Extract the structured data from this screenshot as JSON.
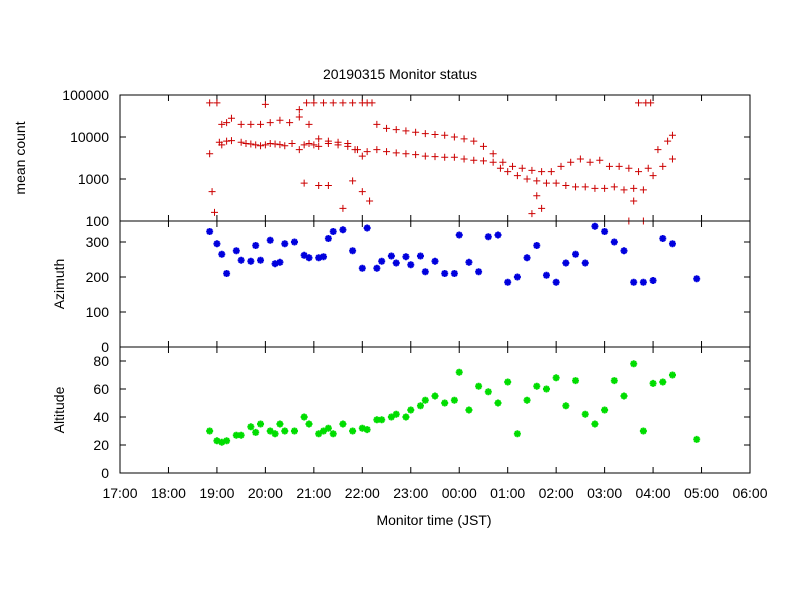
{
  "chart_data": {
    "type": "scatter",
    "title": "20190315 Monitor status",
    "xlabel": "Monitor time (JST)",
    "x_ticks": [
      "17:00",
      "18:00",
      "19:00",
      "20:00",
      "21:00",
      "22:00",
      "23:00",
      "00:00",
      "01:00",
      "02:00",
      "03:00",
      "04:00",
      "05:00",
      "06:00"
    ],
    "x_range_hours": [
      17,
      30
    ],
    "grid": false,
    "panels": [
      {
        "ylabel": "mean count",
        "yscale": "log",
        "ylim": [
          100,
          100000
        ],
        "y_ticks": [
          100,
          1000,
          10000,
          100000
        ],
        "y_tick_labels": [
          "100",
          "1000",
          "10000",
          "100000"
        ],
        "color": "#cc0000",
        "marker": "plus",
        "series": [
          {
            "x": [
              18.85,
              18.9,
              18.95,
              19.05,
              19.1,
              19.2,
              19.3,
              19.5,
              19.6,
              19.7,
              19.8,
              19.9,
              20.0,
              20.1,
              20.2,
              20.3,
              20.4,
              20.55,
              20.7,
              20.8,
              20.9,
              21.0,
              21.1,
              21.3,
              21.5,
              21.7,
              21.85,
              22.0,
              22.3,
              22.5,
              22.7,
              22.9,
              23.1,
              23.3,
              23.5,
              23.7,
              23.9,
              24.1,
              24.3,
              24.5,
              24.7,
              24.85,
              25.0,
              25.2,
              25.4,
              25.6,
              25.8,
              26.0,
              26.2,
              26.4,
              26.6,
              26.8,
              27.0,
              27.2,
              27.4,
              27.6,
              27.8,
              28.0,
              28.2,
              28.4
            ],
            "y": [
              4000,
              500,
              160,
              7500,
              6500,
              8000,
              8200,
              7500,
              7000,
              6800,
              6500,
              6200,
              6500,
              7000,
              6800,
              6600,
              6200,
              7000,
              5000,
              6500,
              7000,
              6500,
              6000,
              7000,
              6500,
              7000,
              5000,
              3500,
              5000,
              4500,
              4200,
              4000,
              3800,
              3500,
              3400,
              3300,
              3300,
              3000,
              2800,
              2700,
              2500,
              1800,
              1500,
              1200,
              1000,
              900,
              800,
              800,
              700,
              650,
              650,
              600,
              600,
              650,
              550,
              600,
              550,
              1200,
              2000,
              3000
            ]
          },
          {
            "x": [
              19.1,
              19.2,
              19.3,
              19.5,
              19.7,
              19.9,
              20.1,
              20.3,
              20.5,
              20.7,
              20.9,
              21.1,
              21.3,
              21.5,
              21.7,
              21.9,
              22.1,
              22.3,
              22.5,
              22.7,
              22.9,
              23.1,
              23.3,
              23.5,
              23.7,
              23.9,
              24.1,
              24.3,
              24.5,
              24.7,
              24.9,
              25.1,
              25.3,
              25.5,
              25.7,
              25.9,
              26.1,
              26.3,
              26.5,
              26.7,
              26.9,
              27.1,
              27.3,
              27.5,
              27.7,
              27.9,
              28.1,
              28.3,
              28.4
            ],
            "y": [
              20000,
              22000,
              28000,
              20000,
              20000,
              20000,
              22000,
              25000,
              22000,
              30000,
              20000,
              9000,
              8000,
              7500,
              6000,
              5000,
              4500,
              20000,
              16000,
              15000,
              14000,
              13000,
              12000,
              11500,
              11000,
              10000,
              9000,
              8000,
              6000,
              4000,
              2500,
              2000,
              1800,
              1600,
              1500,
              1500,
              2000,
              2500,
              3000,
              2500,
              2800,
              2000,
              2000,
              1800,
              1500,
              1800,
              5000,
              8000,
              11000
            ]
          },
          {
            "x": [
              18.85,
              19.0,
              20.0,
              20.7,
              20.85,
              21.0,
              21.2,
              21.4,
              21.6,
              21.8,
              22.0,
              22.1,
              22.2,
              27.5,
              27.7,
              27.85,
              27.95
            ],
            "y": [
              65000,
              65000,
              60000,
              45000,
              65000,
              65000,
              65000,
              65000,
              65000,
              65000,
              65000,
              65000,
              65000,
              100,
              65000,
              65000,
              65000
            ]
          },
          {
            "x": [
              20.8,
              21.1,
              21.3,
              21.6,
              21.8,
              22.0,
              22.15,
              25.5,
              25.6,
              25.7,
              27.6,
              27.8
            ],
            "y": [
              800,
              700,
              700,
              200,
              900,
              500,
              300,
              150,
              400,
              200,
              300,
              100
            ]
          }
        ]
      },
      {
        "ylabel": "Azimuth",
        "yscale": "linear",
        "ylim": [
          0,
          360
        ],
        "y_ticks": [
          0,
          100,
          200,
          300
        ],
        "y_tick_labels": [
          "0",
          "100",
          "200",
          "300"
        ],
        "color": "#0000dd",
        "marker": "star",
        "series": [
          {
            "x": [
              18.85,
              19.0,
              19.1,
              19.2,
              19.4,
              19.5,
              19.7,
              19.8,
              19.9,
              20.1,
              20.2,
              20.3,
              20.4,
              20.6,
              20.8,
              20.9,
              21.1,
              21.2,
              21.3,
              21.4,
              21.6,
              21.8,
              22.0,
              22.1,
              22.3,
              22.4,
              22.6,
              22.7,
              22.9,
              23.0,
              23.2,
              23.3,
              23.5,
              23.7,
              23.9,
              24.0,
              24.2,
              24.4,
              24.6,
              24.8,
              25.0,
              25.2,
              25.4,
              25.6,
              25.8,
              26.0,
              26.2,
              26.4,
              26.6,
              26.8,
              27.0,
              27.2,
              27.4,
              27.6,
              27.8,
              28.0,
              28.2,
              28.4,
              28.9
            ],
            "y": [
              330,
              295,
              265,
              210,
              275,
              248,
              245,
              290,
              248,
              305,
              238,
              242,
              295,
              300,
              262,
              255,
              255,
              258,
              310,
              330,
              335,
              275,
              225,
              340,
              225,
              245,
              260,
              240,
              258,
              235,
              260,
              215,
              245,
              210,
              210,
              320,
              242,
              215,
              315,
              320,
              185,
              200,
              255,
              290,
              205,
              185,
              240,
              265,
              240,
              345,
              330,
              300,
              275,
              185,
              185,
              190,
              310,
              295,
              195
            ]
          }
        ]
      },
      {
        "ylabel": "Altitude",
        "yscale": "linear",
        "ylim": [
          0,
          90
        ],
        "y_ticks": [
          0,
          20,
          40,
          60,
          80
        ],
        "y_tick_labels": [
          "0",
          "20",
          "40",
          "60",
          "80"
        ],
        "color": "#00dd00",
        "marker": "star",
        "series": [
          {
            "x": [
              18.85,
              19.0,
              19.1,
              19.2,
              19.4,
              19.5,
              19.7,
              19.8,
              19.9,
              20.1,
              20.2,
              20.3,
              20.4,
              20.6,
              20.8,
              20.9,
              21.1,
              21.2,
              21.3,
              21.4,
              21.6,
              21.8,
              22.0,
              22.1,
              22.3,
              22.4,
              22.6,
              22.7,
              22.9,
              23.0,
              23.2,
              23.3,
              23.5,
              23.7,
              23.9,
              24.0,
              24.2,
              24.4,
              24.6,
              24.8,
              25.0,
              25.2,
              25.4,
              25.6,
              25.8,
              26.0,
              26.2,
              26.4,
              26.6,
              26.8,
              27.0,
              27.2,
              27.4,
              27.6,
              27.8,
              28.0,
              28.2,
              28.4,
              28.9
            ],
            "y": [
              30,
              23,
              22,
              23,
              27,
              27,
              33,
              29,
              35,
              30,
              28,
              35,
              30,
              30,
              40,
              35,
              28,
              30,
              32,
              28,
              35,
              30,
              32,
              31,
              38,
              38,
              40,
              42,
              40,
              45,
              48,
              52,
              55,
              50,
              52,
              72,
              45,
              62,
              58,
              50,
              65,
              28,
              52,
              62,
              60,
              68,
              48,
              66,
              42,
              35,
              45,
              66,
              55,
              78,
              30,
              64,
              65,
              70,
              24
            ]
          }
        ]
      }
    ]
  }
}
